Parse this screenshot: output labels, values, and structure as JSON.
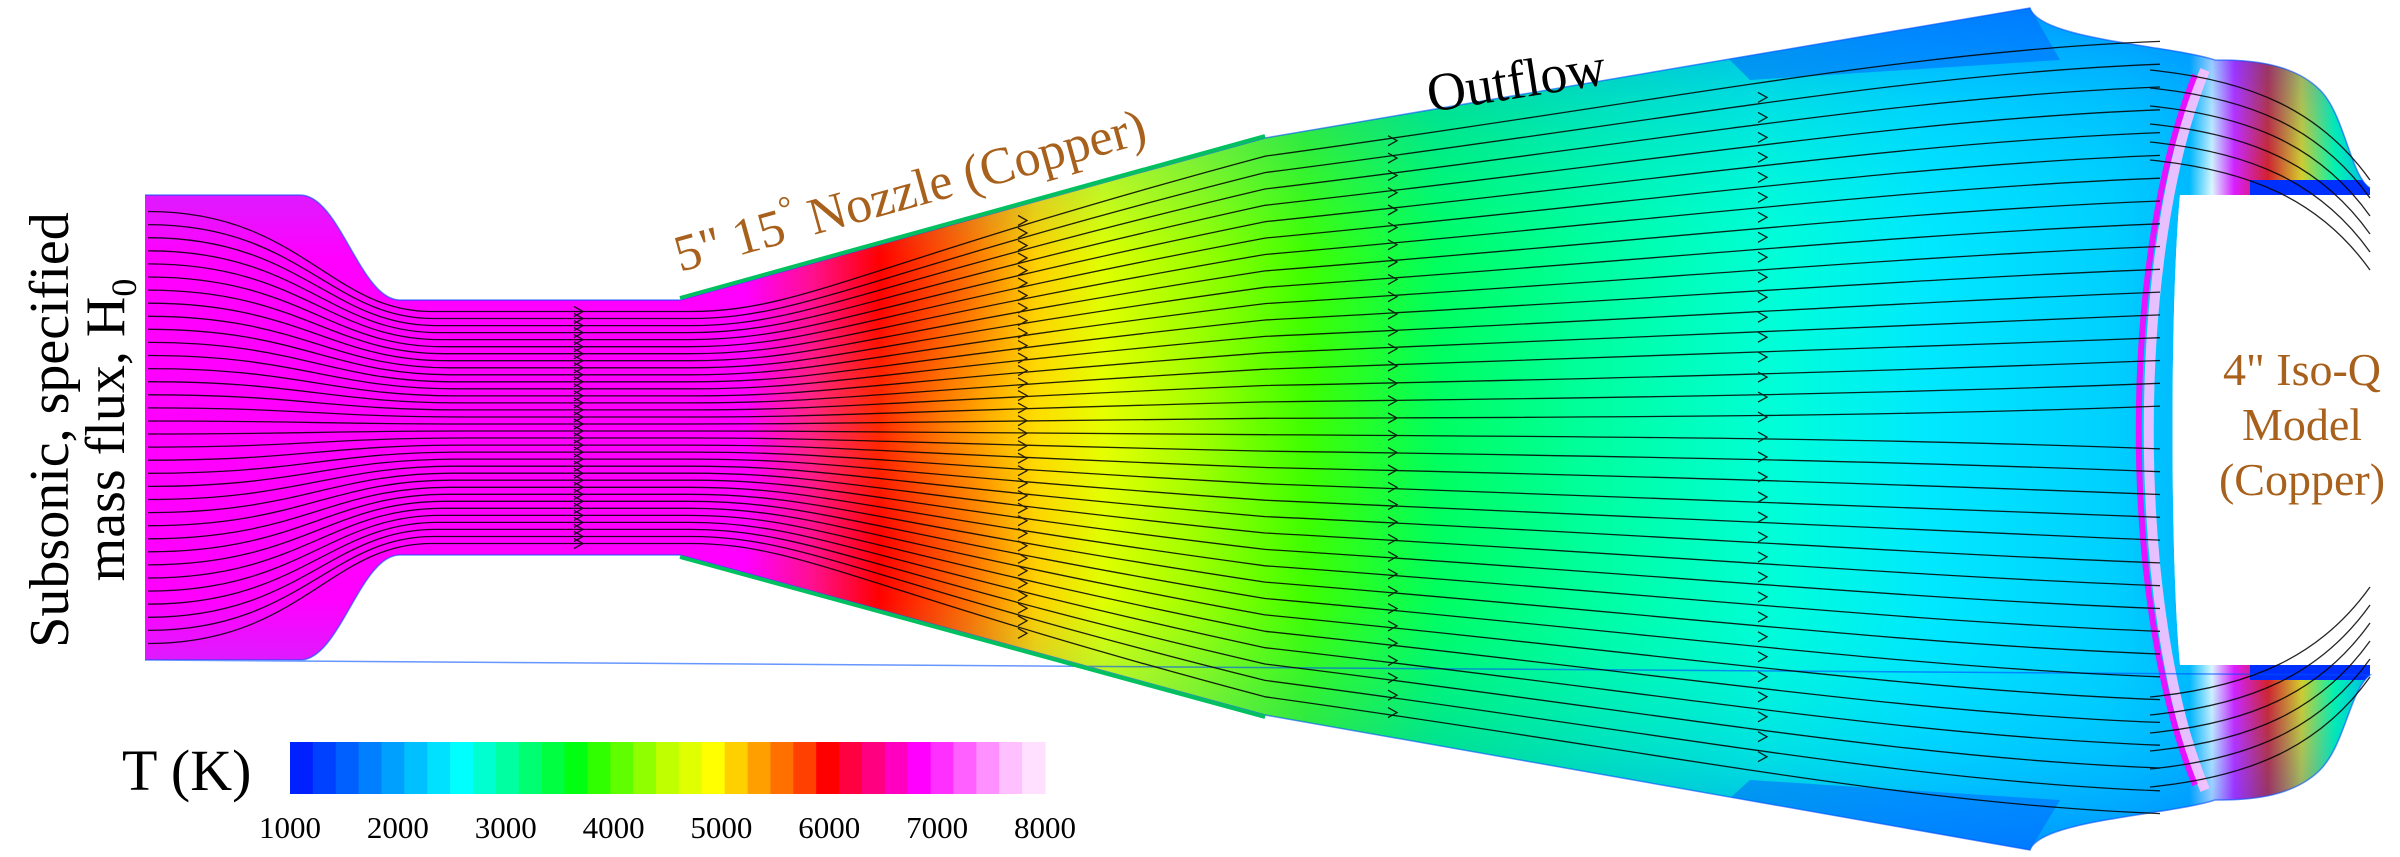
{
  "labels": {
    "inflow_line1": "Subsonic, specified",
    "inflow_line2": "mass flux, H",
    "inflow_subscript": "0",
    "nozzle": "5\" 15",
    "nozzle_degree": "°",
    "nozzle_rest": " Nozzle (Copper)",
    "outflow": "Outflow",
    "model_line1": "4\" Iso-Q",
    "model_line2": "Model",
    "model_line3": "(Copper)"
  },
  "colorbar": {
    "title": "T (K)",
    "min": 1000,
    "max": 8000,
    "ticks": [
      "1000",
      "2000",
      "3000",
      "4000",
      "5000",
      "6000",
      "7000",
      "8000"
    ],
    "colors": [
      "#0020ff",
      "#0040ff",
      "#0060ff",
      "#0080ff",
      "#00a0ff",
      "#00c0ff",
      "#00e0ff",
      "#00ffff",
      "#00ffd0",
      "#00ffa0",
      "#00ff70",
      "#00ff40",
      "#00ff10",
      "#30ff00",
      "#60ff00",
      "#90ff00",
      "#c0ff00",
      "#e0ff00",
      "#ffff00",
      "#ffd000",
      "#ffa000",
      "#ff7000",
      "#ff4000",
      "#ff0000",
      "#ff0040",
      "#ff0080",
      "#ff00c0",
      "#ff00ff",
      "#ff30ff",
      "#ff60ff",
      "#ff90ff",
      "#ffc0ff",
      "#ffe0ff"
    ]
  },
  "colors": {
    "inflow": "#ff00ff",
    "throat": "#ff00ff",
    "nozzle_exit": "#ff3000",
    "core_mid": "#00ff60",
    "outer": "#00e0ff",
    "edge": "#0070ff",
    "shock": "#ff00ff",
    "annotation": "#a8611c"
  }
}
